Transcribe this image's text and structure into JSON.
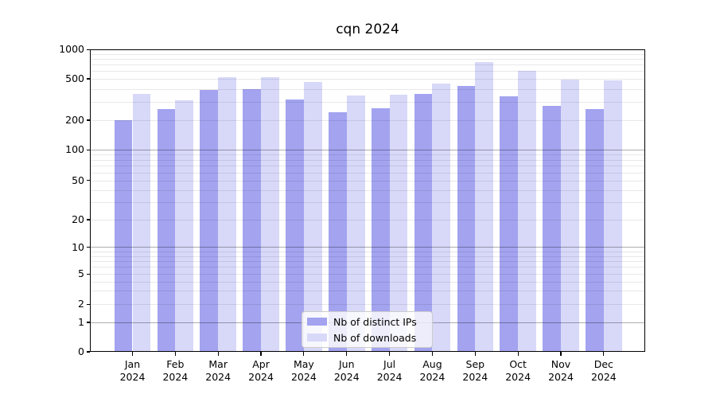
{
  "chart_data": {
    "type": "bar",
    "title": "cqn 2024",
    "scale": "symlog",
    "grid": "on",
    "legend_position": "bottom-center-inside",
    "year": "2024",
    "categories": [
      "Jan",
      "Feb",
      "Mar",
      "Apr",
      "May",
      "Jun",
      "Jul",
      "Aug",
      "Sep",
      "Oct",
      "Nov",
      "Dec"
    ],
    "y_ticks": [
      0,
      1,
      2,
      5,
      10,
      20,
      50,
      100,
      200,
      500,
      1000
    ],
    "ylim": [
      0,
      1000
    ],
    "series": [
      {
        "name": "Nb of distinct IPs",
        "color": "#a3a3f0",
        "values": [
          200,
          255,
          390,
          400,
          315,
          240,
          260,
          355,
          425,
          340,
          275,
          255
        ]
      },
      {
        "name": "Nb of downloads",
        "color": "#d8d8f9",
        "values": [
          360,
          310,
          520,
          520,
          465,
          345,
          350,
          450,
          745,
          605,
          490,
          480
        ]
      }
    ]
  }
}
